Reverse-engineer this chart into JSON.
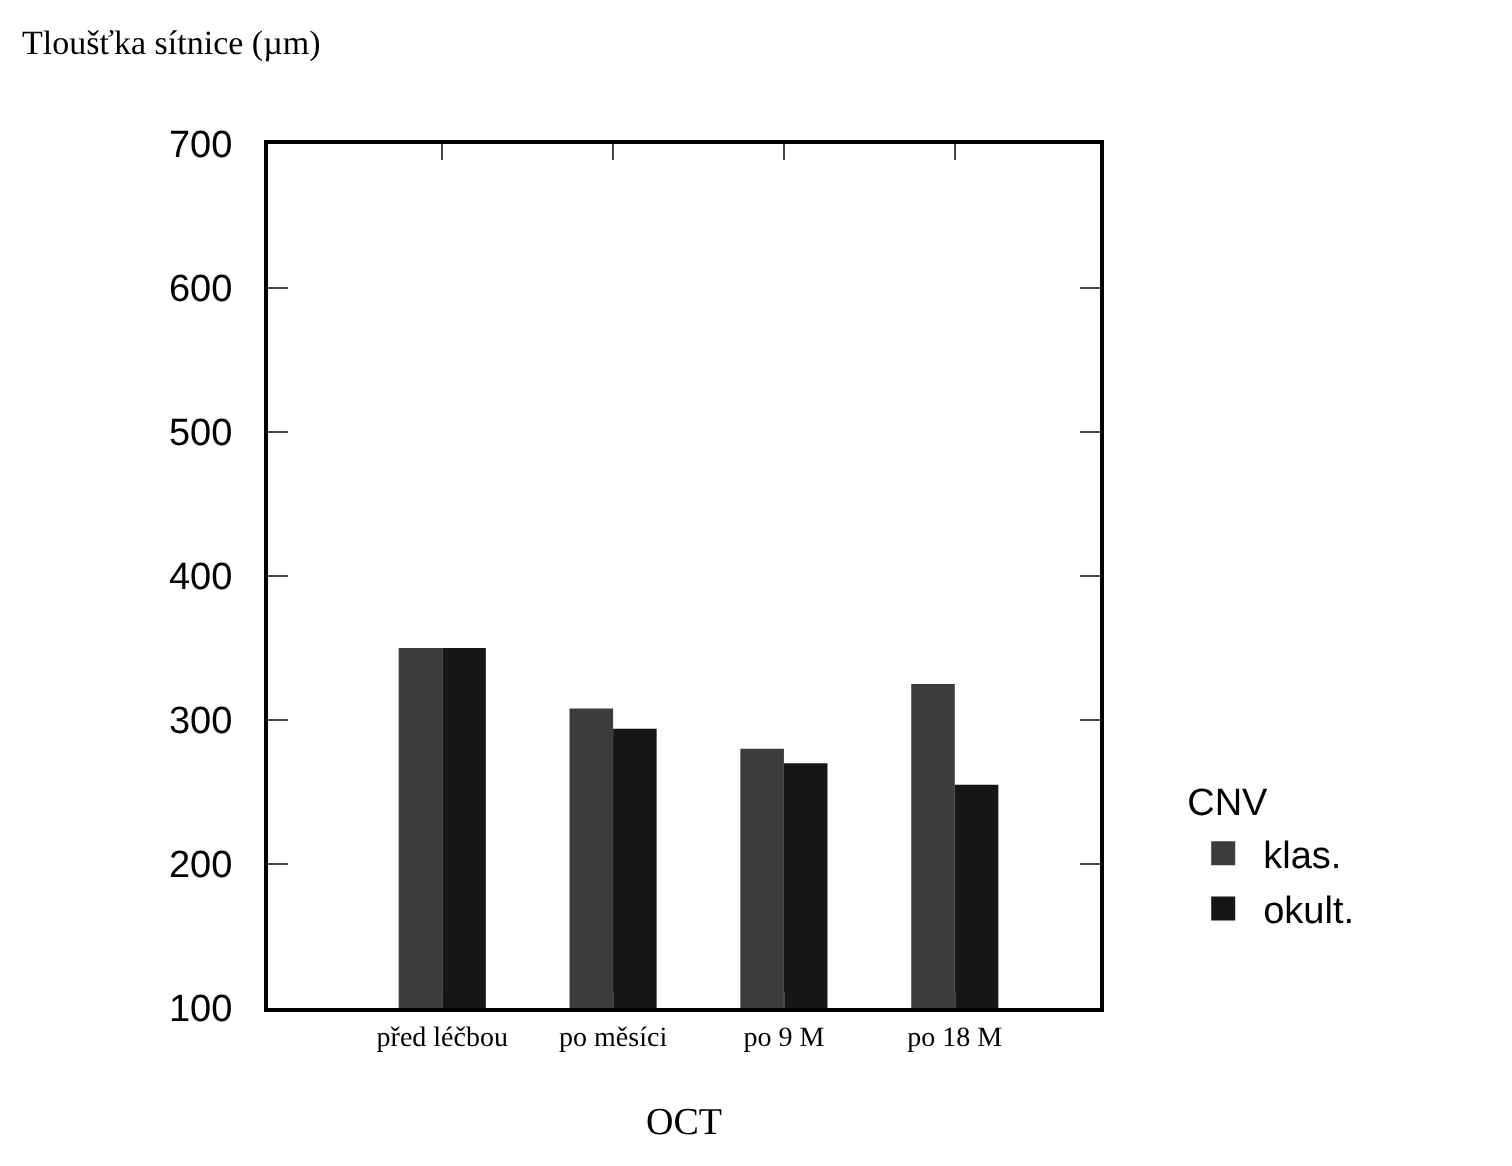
{
  "chart_data": {
    "type": "bar",
    "ylabel": "Tloušťka sítnice (µm)",
    "xlabel": "OCT",
    "legend_title": "CNV",
    "legend": "right",
    "categories": [
      "před léčbou",
      "po měsíci",
      "po 9 M",
      "po 18 M"
    ],
    "series": [
      {
        "name": "klas.",
        "color": "#3c3c3c",
        "values": [
          350,
          308,
          280,
          325
        ]
      },
      {
        "name": "okult.",
        "color": "#161616",
        "values": [
          350,
          294,
          270,
          255
        ]
      }
    ],
    "ylim": [
      100,
      700
    ],
    "yticks": [
      100,
      200,
      300,
      400,
      500,
      600,
      700
    ],
    "grid": false
  }
}
